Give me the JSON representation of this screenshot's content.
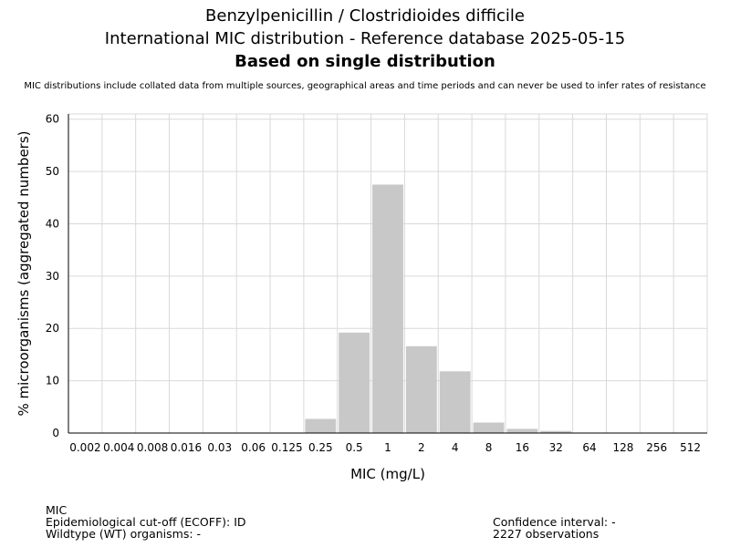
{
  "header": {
    "title_line1": "Benzylpenicillin / Clostridioides difficile",
    "title_line2": "International MIC distribution - Reference database 2025-05-15",
    "title_line3": "Based on single distribution",
    "disclaimer": "MIC distributions include collated data from multiple sources, geographical areas and time periods and can never be used to infer rates of resistance"
  },
  "footer": {
    "mic_label": "MIC",
    "ecoff": "Epidemiological cut-off (ECOFF): ID",
    "wt": "Wildtype (WT) organisms:  -",
    "confidence": "Confidence interval: -",
    "observations": "2227 observations"
  },
  "colors": {
    "bar": "#c8c8c8",
    "grid": "#d9d9d9",
    "axis": "#000000"
  },
  "chart_data": {
    "type": "bar",
    "categories": [
      "0.002",
      "0.004",
      "0.008",
      "0.016",
      "0.03",
      "0.06",
      "0.125",
      "0.25",
      "0.5",
      "1",
      "2",
      "4",
      "8",
      "16",
      "32",
      "64",
      "128",
      "256",
      "512"
    ],
    "values": [
      0,
      0,
      0,
      0,
      0.1,
      0.1,
      0.1,
      2.7,
      19.2,
      47.5,
      16.6,
      11.8,
      2.0,
      0.8,
      0.4,
      0,
      0,
      0,
      0
    ],
    "xlabel": "MIC (mg/L)",
    "ylabel": "% microorganisms (aggregated numbers)",
    "ylim": [
      0,
      61
    ],
    "yticks": [
      0,
      10,
      20,
      30,
      40,
      50,
      60
    ],
    "grid": true
  }
}
